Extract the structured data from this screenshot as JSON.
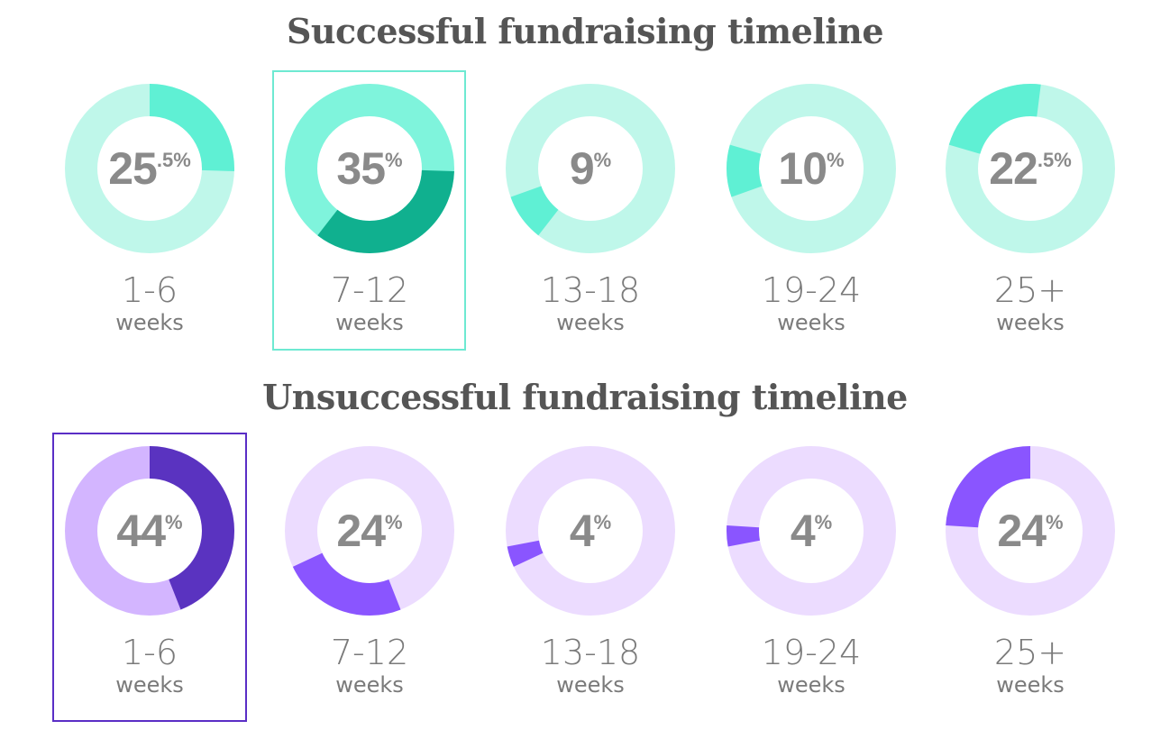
{
  "chart_data": [
    {
      "type": "pie",
      "title": "Successful fundraising timeline",
      "series": [
        {
          "category_range": "1-6",
          "unit": "weeks",
          "value_int": "25",
          "value_frac": ".5",
          "value": 25.5
        },
        {
          "category_range": "7-12",
          "unit": "weeks",
          "value_int": "35",
          "value_frac": "",
          "value": 35
        },
        {
          "category_range": "13-18",
          "unit": "weeks",
          "value_int": "9",
          "value_frac": "",
          "value": 9
        },
        {
          "category_range": "19-24",
          "unit": "weeks",
          "value_int": "10",
          "value_frac": "",
          "value": 10
        },
        {
          "category_range": "25+",
          "unit": "weeks",
          "value_int": "22",
          "value_frac": ".5",
          "value": 22.5
        }
      ],
      "percent_sign": "%",
      "highlighted_index": 1,
      "colors": {
        "track": "#bff7ea",
        "segment": "#5ff0d4",
        "highlight_track": "#7ff4dc",
        "highlight_segment": "#10b08f",
        "box": "#6ee9d2"
      }
    },
    {
      "type": "pie",
      "title": "Unsuccessful fundraising timeline",
      "series": [
        {
          "category_range": "1-6",
          "unit": "weeks",
          "value_int": "44",
          "value_frac": "",
          "value": 44
        },
        {
          "category_range": "7-12",
          "unit": "weeks",
          "value_int": "24",
          "value_frac": "",
          "value": 24
        },
        {
          "category_range": "13-18",
          "unit": "weeks",
          "value_int": "4",
          "value_frac": "",
          "value": 4
        },
        {
          "category_range": "19-24",
          "unit": "weeks",
          "value_int": "4",
          "value_frac": "",
          "value": 4
        },
        {
          "category_range": "25+",
          "unit": "weeks",
          "value_int": "24",
          "value_frac": "",
          "value": 24
        }
      ],
      "percent_sign": "%",
      "highlighted_index": 0,
      "colors": {
        "track": "#ecdcff",
        "segment": "#8a55ff",
        "highlight_track": "#d3b5ff",
        "highlight_segment": "#5a33c0",
        "box": "#5a2ec6"
      }
    }
  ]
}
